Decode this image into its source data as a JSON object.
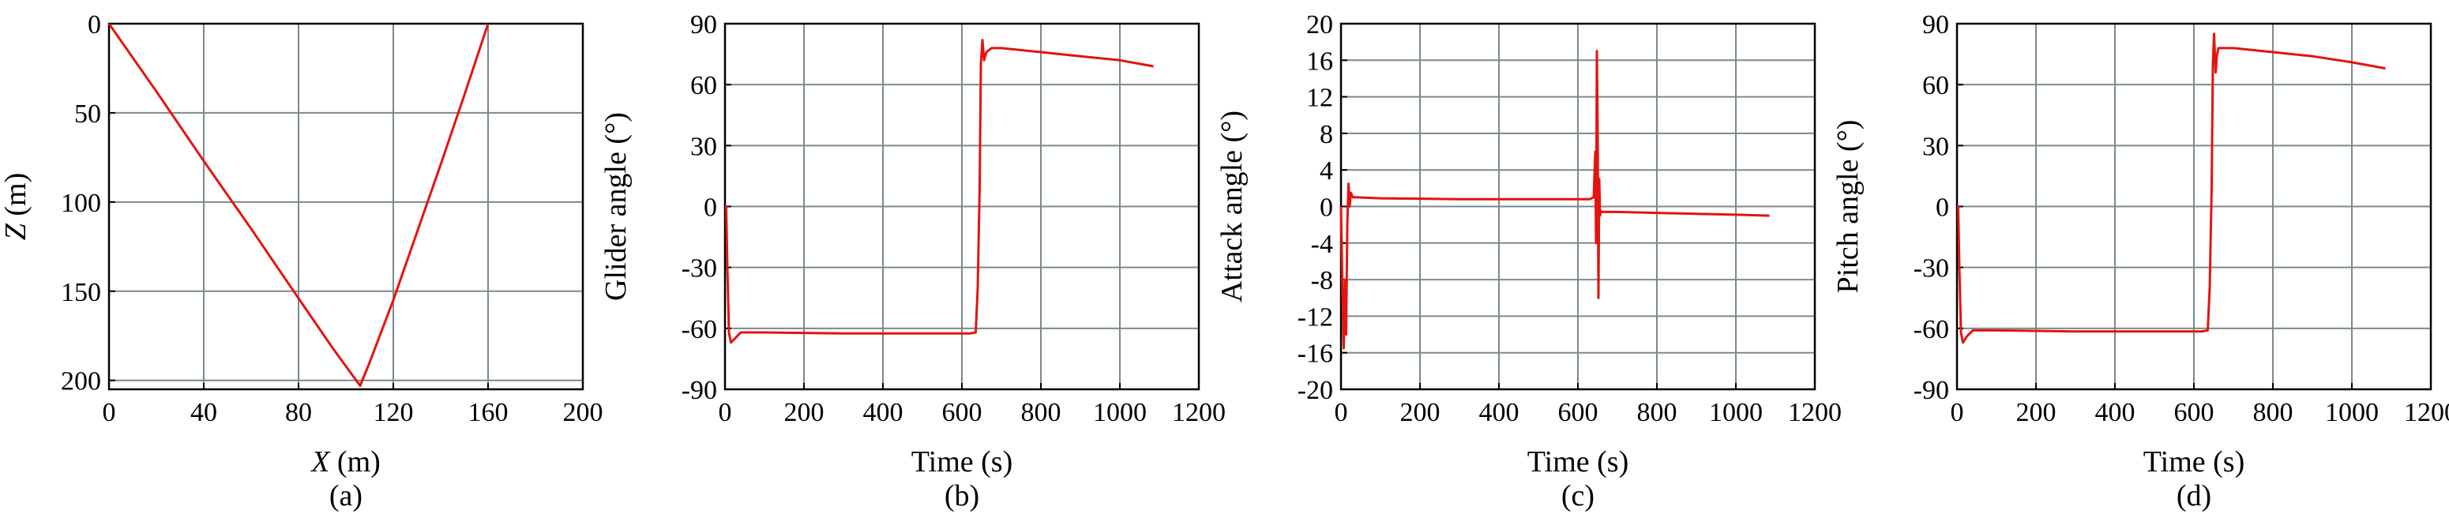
{
  "colors": {
    "series": "#e3140f",
    "grid": "#7a8a8f",
    "frame": "#000000"
  },
  "chart_data": [
    {
      "type": "line",
      "panel_label": "(a)",
      "title": "",
      "xlabel_italic": "X",
      "xlabel_rest": " (m)",
      "ylabel_italic": "Z",
      "ylabel_rest": " (m)",
      "xlim": [
        0,
        200
      ],
      "ylim": [
        205,
        0
      ],
      "y_inverted": true,
      "xticks": [
        0,
        40,
        80,
        120,
        160,
        200
      ],
      "yticks": [
        0,
        50,
        100,
        150,
        200
      ],
      "grid": true,
      "series": [
        {
          "x": [
            0,
            20,
            40,
            60,
            80,
            95,
            106,
            110,
            120,
            130,
            140,
            150,
            160
          ],
          "y": [
            0,
            38,
            77,
            115,
            154,
            183,
            203,
            190,
            155,
            117,
            79,
            40,
            0
          ]
        }
      ]
    },
    {
      "type": "line",
      "panel_label": "(b)",
      "title": "",
      "xlabel": "Time (s)",
      "ylabel": "Glider angle (°)",
      "xlim": [
        0,
        1200
      ],
      "ylim": [
        -90,
        90
      ],
      "xticks": [
        0,
        200,
        400,
        600,
        800,
        1000,
        1200
      ],
      "yticks": [
        -90,
        -60,
        -30,
        0,
        30,
        60,
        90
      ],
      "grid": true,
      "series": [
        {
          "x": [
            0,
            3,
            6,
            10,
            15,
            25,
            40,
            100,
            300,
            500,
            620,
            635,
            640,
            645,
            648,
            652,
            656,
            662,
            675,
            700,
            800,
            900,
            1000,
            1085
          ],
          "y": [
            0,
            0,
            -30,
            -62,
            -67,
            -65,
            -62,
            -62,
            -62.5,
            -62.5,
            -62.5,
            -62,
            -40,
            10,
            70,
            82,
            72,
            76,
            78,
            78,
            76,
            74,
            72,
            69
          ]
        }
      ]
    },
    {
      "type": "line",
      "panel_label": "(c)",
      "title": "",
      "xlabel": "Time (s)",
      "ylabel": "Attack angle (°)",
      "xlim": [
        0,
        1200
      ],
      "ylim": [
        -20,
        20
      ],
      "xticks": [
        0,
        200,
        400,
        600,
        800,
        1000,
        1200
      ],
      "yticks": [
        -20,
        -16,
        -12,
        -8,
        -4,
        0,
        4,
        8,
        12,
        16,
        20
      ],
      "grid": true,
      "series": [
        {
          "x": [
            0,
            4,
            7,
            10,
            13,
            16,
            19,
            22,
            25,
            30,
            40,
            100,
            300,
            500,
            630,
            640,
            644,
            646,
            648,
            650,
            652,
            654,
            656,
            658,
            660,
            665,
            680,
            700,
            800,
            900,
            1000,
            1085
          ],
          "y": [
            0,
            -10,
            -15.5,
            -8,
            -14,
            -2,
            2.5,
            0,
            1.5,
            1,
            1,
            0.9,
            0.8,
            0.8,
            0.8,
            1,
            6,
            -4,
            17,
            8,
            -10,
            3,
            -1,
            -0.5,
            -0.6,
            -0.6,
            -0.6,
            -0.6,
            -0.7,
            -0.8,
            -0.9,
            -1
          ]
        }
      ]
    },
    {
      "type": "line",
      "panel_label": "(d)",
      "title": "",
      "xlabel": "Time (s)",
      "ylabel": "Pitch angle (°)",
      "xlim": [
        0,
        1200
      ],
      "ylim": [
        -90,
        90
      ],
      "xticks": [
        0,
        200,
        400,
        600,
        800,
        1000,
        1200
      ],
      "yticks": [
        -90,
        -60,
        -30,
        0,
        30,
        60,
        90
      ],
      "grid": true,
      "series": [
        {
          "x": [
            0,
            3,
            6,
            10,
            15,
            25,
            40,
            100,
            300,
            500,
            620,
            635,
            640,
            645,
            648,
            651,
            655,
            658,
            662,
            675,
            700,
            800,
            900,
            1000,
            1085
          ],
          "y": [
            0,
            0,
            -30,
            -62,
            -67,
            -64,
            -61,
            -61,
            -61.5,
            -61.5,
            -61.5,
            -61,
            -40,
            10,
            70,
            85,
            66,
            74,
            78,
            78,
            78,
            76,
            74,
            71,
            68
          ]
        }
      ]
    }
  ]
}
